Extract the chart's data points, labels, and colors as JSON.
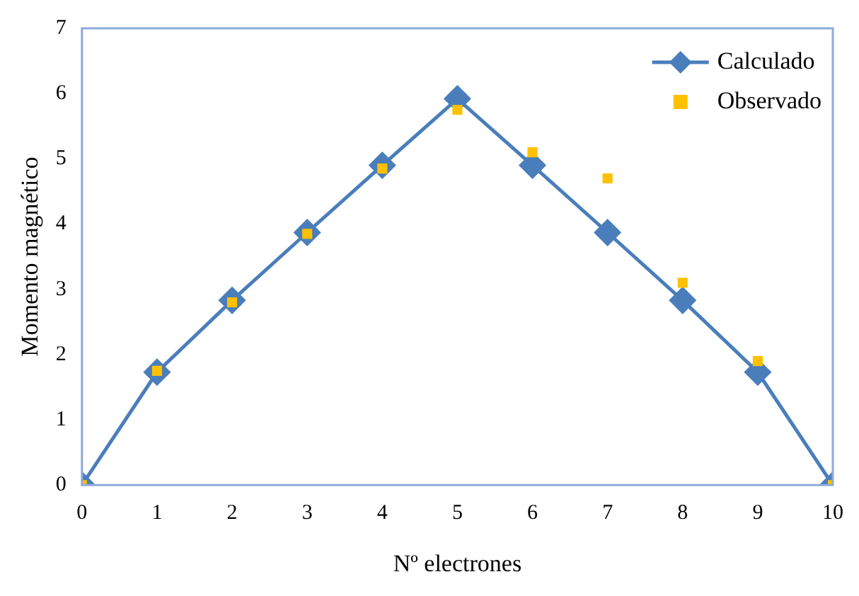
{
  "chart_data": {
    "type": "line",
    "xlabel": "Nº electrones",
    "ylabel": "Momento magnético",
    "x": [
      0,
      1,
      2,
      3,
      4,
      5,
      6,
      7,
      8,
      9,
      10
    ],
    "series": [
      {
        "name": "Calculado",
        "type": "line",
        "color": "#4a7ebb",
        "marker": "diamond",
        "values": [
          0,
          1.73,
          2.83,
          3.87,
          4.9,
          5.92,
          4.9,
          3.87,
          2.83,
          1.73,
          0
        ]
      },
      {
        "name": "Observado",
        "type": "scatter",
        "color": "#ffc000",
        "marker": "square",
        "values": [
          0,
          1.75,
          2.8,
          3.85,
          4.85,
          5.75,
          5.1,
          4.7,
          3.1,
          1.9,
          0
        ]
      }
    ],
    "xlim": [
      0,
      10
    ],
    "xticks": [
      0,
      1,
      2,
      3,
      4,
      5,
      6,
      7,
      8,
      9,
      10
    ],
    "ylim": [
      0,
      7
    ],
    "yticks": [
      0,
      1,
      2,
      3,
      4,
      5,
      6,
      7
    ],
    "grid": false,
    "legend": "top right"
  }
}
